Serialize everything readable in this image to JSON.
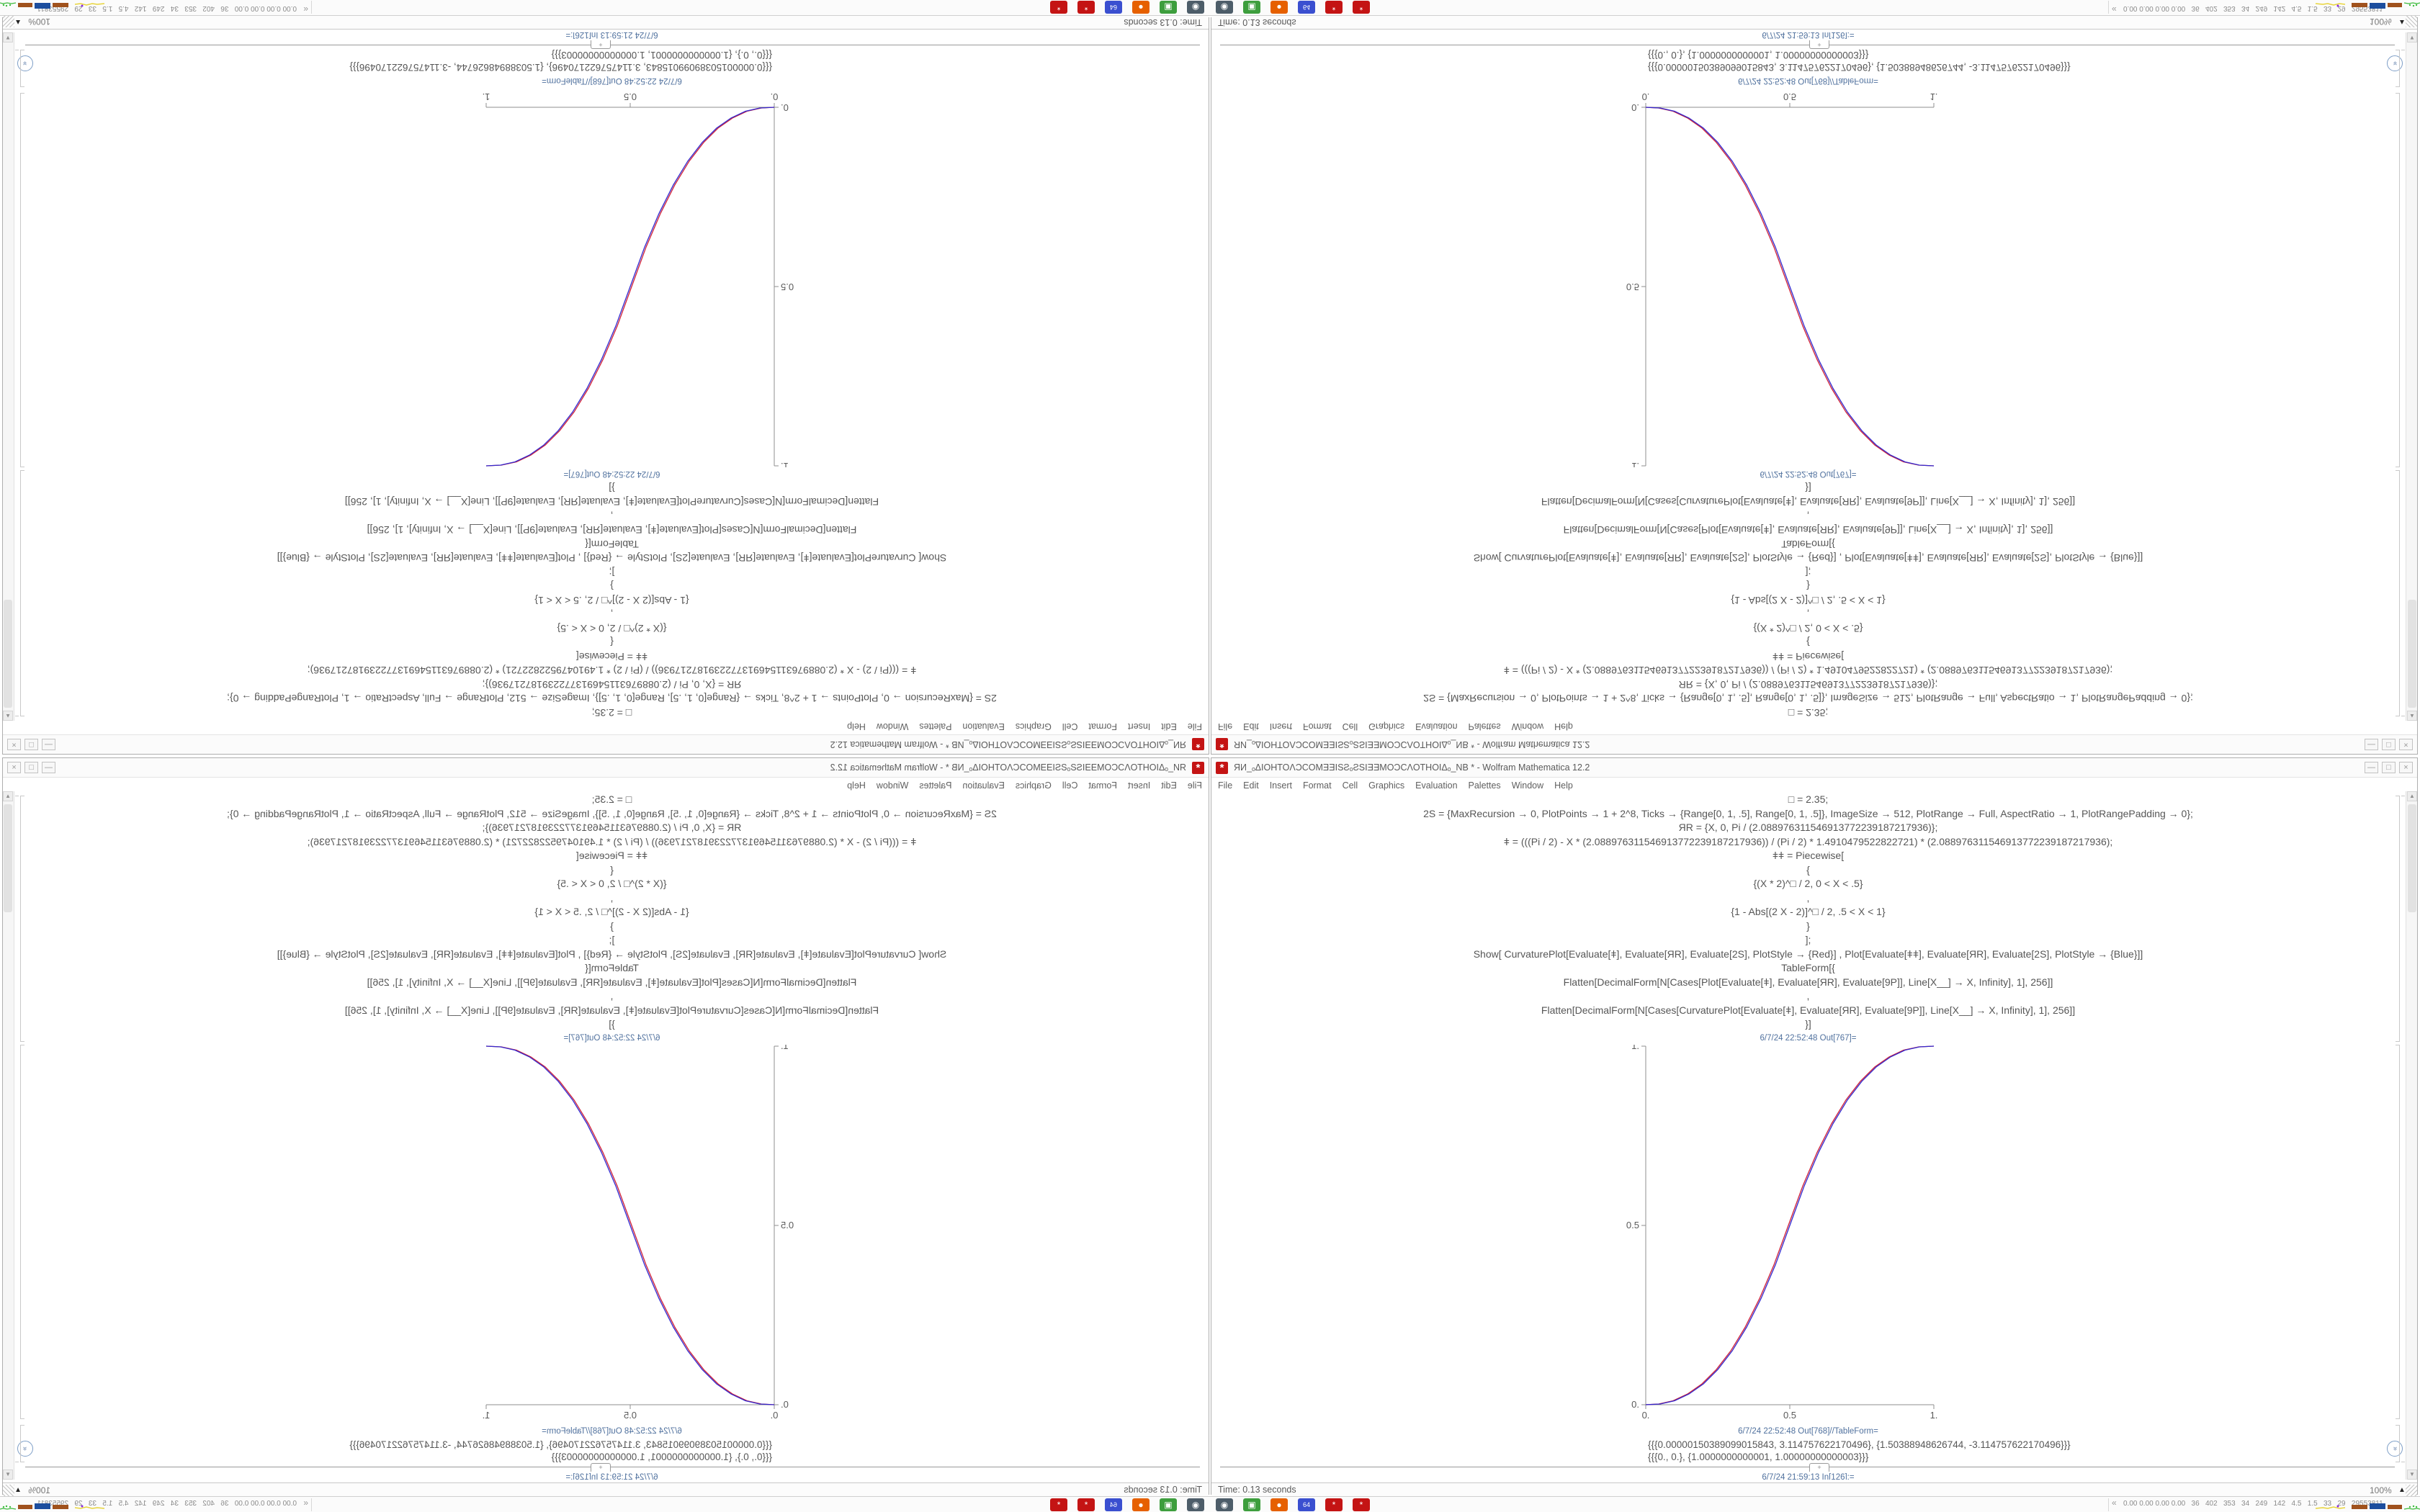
{
  "window": {
    "icon_glyph": "*",
    "title": "ЯИ_ₒΔIOHTOΛƆCOMƎƎISƧₒƧSIƎƎMOƆϹΛOTHOIΔₒ_NB * - Wolfram Mathematica 12.2",
    "menu": [
      "File",
      "Edit",
      "Insert",
      "Format",
      "Cell",
      "Graphics",
      "Evaluation",
      "Palettes",
      "Window",
      "Help"
    ],
    "controls": {
      "minimize": "—",
      "maximize": "□",
      "close": "×"
    }
  },
  "notebook": {
    "lines": [
      "□ = 2.35;",
      "2S = {MaxRecursion → 0, PlotPoints → 1 + 2^8, Ticks → {Range[0, 1, .5], Range[0, 1, .5]}, ImageSize → 512, PlotRange → Full, AspectRatio → 1, PlotRangePadding → 0};",
      "ЯR = {X, 0, Pi / (2.088976311546913772239187217936)};",
      "ǂ = (((Pi / 2) - X * (2.088976311546913772239187217936)) / (Pi / 2) * 1.4910479522822721) * (2.088976311546913772239187217936);",
      "ǂǂ = Piecewise[",
      "{",
      "{(X * 2)^□ / 2, 0 < X < .5}",
      ",",
      "{1 - Abs[(2 X - 2)]^□ / 2, .5 < X < 1}",
      "}",
      "];",
      "Show[  CurvaturePlot[Evaluate[ǂ], Evaluate[ЯR], Evaluate[2S], PlotStyle → {Red}]  ,  Plot[Evaluate[ǂǂ], Evaluate[ЯR], Evaluate[2S], PlotStyle → {Blue}]]",
      "TableForm[{",
      "Flatten[DecimalForm[N[Cases[Plot[Evaluate[ǂ], Evaluate[ЯR], Evaluate[9P]], Line[X__] → X, Infinity], 1], 256]]",
      ",",
      "Flatten[DecimalForm[N[Cases[CurvaturePlot[Evaluate[ǂ], Evaluate[ЯR], Evaluate[9P]], Line[X__] → X, Infinity], 1], 256]]",
      "}]"
    ],
    "out_label_plot": "6/7/24 22:52:48 Out[767]=",
    "out_label_table": "6/7/24 22:52:48 Out[768]//TableForm=",
    "table_lines": [
      "{{{0.00000150389099015843, 3.114757622170496}, {1.50388948626744, -3.114757622170496}}}",
      "{{{0., 0.}, {1.0000000000001, 1.00000000000003}}}"
    ],
    "insert_plus": "+",
    "next_in_label": "6/7/24 21:59:13 In[126]:=",
    "elide_glyph": "»"
  },
  "chart_data": {
    "type": "line",
    "title": "",
    "xlabel": "",
    "ylabel": "",
    "xlim": [
      0,
      1
    ],
    "ylim": [
      0,
      1
    ],
    "grid": false,
    "legend": "none",
    "xticks": {
      "values": [
        0,
        0.5,
        1
      ],
      "labels": [
        "0.",
        "0.5",
        "1."
      ]
    },
    "yticks": {
      "values": [
        0,
        0.5,
        1
      ],
      "labels": [
        "0.",
        "0.5",
        "1."
      ]
    },
    "series": [
      {
        "name": "CurvaturePlot (Red)",
        "color": "#cf2038",
        "x": [
          0,
          0.045,
          0.095,
          0.145,
          0.195,
          0.245,
          0.295,
          0.345,
          0.395,
          0.445,
          0.495,
          0.545,
          0.595,
          0.645,
          0.695,
          0.745,
          0.795,
          0.845,
          0.895,
          0.947,
          1
        ],
        "y": [
          0,
          0.002,
          0.011,
          0.03,
          0.058,
          0.098,
          0.15,
          0.216,
          0.296,
          0.39,
          0.5,
          0.61,
          0.704,
          0.784,
          0.85,
          0.902,
          0.942,
          0.97,
          0.989,
          0.998,
          1
        ]
      },
      {
        "name": "Plot (Blue)",
        "color": "#3229cf",
        "x": [
          0,
          0.05,
          0.1,
          0.15,
          0.2,
          0.25,
          0.3,
          0.35,
          0.4,
          0.45,
          0.5,
          0.55,
          0.6,
          0.65,
          0.7,
          0.75,
          0.8,
          0.85,
          0.9,
          0.95,
          1
        ],
        "y": [
          0,
          0.002,
          0.011,
          0.03,
          0.058,
          0.098,
          0.15,
          0.216,
          0.296,
          0.39,
          0.5,
          0.61,
          0.704,
          0.784,
          0.85,
          0.902,
          0.942,
          0.97,
          0.989,
          0.998,
          1
        ]
      }
    ]
  },
  "statusbar": {
    "time": "Time: 0.13 seconds",
    "zoom_level": "100%",
    "zoom_arrow": "▲"
  },
  "taskbar": {
    "icons": [
      {
        "name": "screenshot-tool",
        "bg": "#4d5d69",
        "glyph": "◉"
      },
      {
        "name": "package-manager",
        "bg": "#3d9e3d",
        "glyph": "▣"
      },
      {
        "name": "firefox-browser",
        "bg": "#e66000",
        "glyph": "●"
      },
      {
        "name": "emulator-64",
        "bg": "#3a4fd0",
        "glyph": "64"
      },
      {
        "name": "mathematica-window-1",
        "bg": "#c41414",
        "glyph": "*"
      },
      {
        "name": "mathematica-window-2",
        "bg": "#c41414",
        "glyph": "*"
      }
    ],
    "tray_chevron": "«",
    "tray_numbers": "0.00 0.00 0.00 0.00   36   402   353   34   249   142   4.5   1.5   33   29   29553811"
  }
}
